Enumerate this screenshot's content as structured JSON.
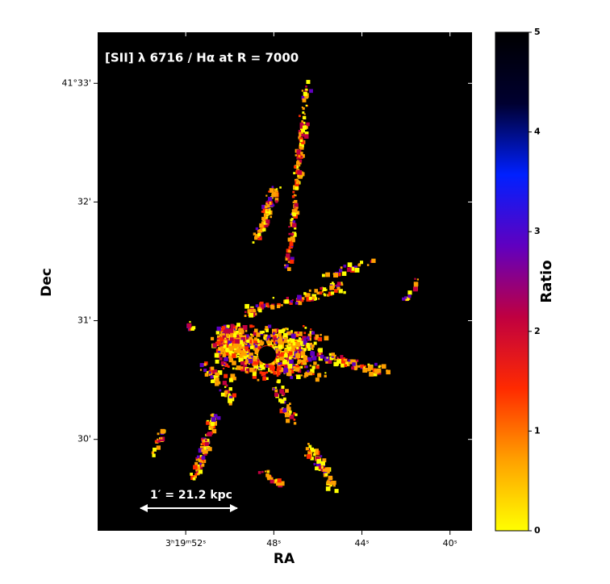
{
  "chart_data": {
    "type": "image",
    "title": "[SII] λ 6716 / Hα at R = 7000",
    "xlabel": "RA",
    "ylabel": "Dec",
    "xlim": [
      56,
      39
    ],
    "xticks": [
      {
        "value": 52,
        "label": "3ʰ19ᵐ52ˢ"
      },
      {
        "value": 48,
        "label": "48ˢ"
      },
      {
        "value": 44,
        "label": "44ˢ"
      },
      {
        "value": 40,
        "label": "40ˢ"
      }
    ],
    "ylim": [
      29.23,
      33.43
    ],
    "yticks": [
      {
        "value": 33,
        "label": "41°33'"
      },
      {
        "value": 32,
        "label": "32'"
      },
      {
        "value": 31,
        "label": "31'"
      },
      {
        "value": 30,
        "label": "30'"
      }
    ],
    "colorbar": {
      "label": "Ratio",
      "lim": [
        0,
        5
      ],
      "ticks": [
        0,
        1,
        2,
        3,
        4,
        5
      ],
      "colormap": [
        "#ffff00",
        "#ffa000",
        "#ff2a00",
        "#c00040",
        "#6000c0",
        "#0020ff",
        "#000030",
        "#000000"
      ]
    },
    "scalebar": "1′ = 21.2 kpc"
  }
}
